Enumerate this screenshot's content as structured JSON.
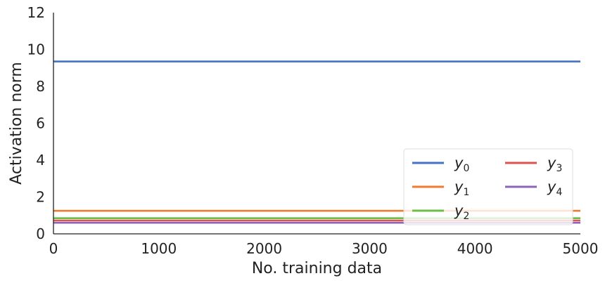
{
  "chart_data": {
    "type": "line",
    "title": "",
    "xlabel": "No. training data",
    "ylabel": "Activation norm",
    "xlim": [
      0,
      5000
    ],
    "ylim": [
      0,
      12
    ],
    "xticks": [
      0,
      1000,
      2000,
      3000,
      4000,
      5000
    ],
    "yticks": [
      0,
      2,
      4,
      6,
      8,
      10,
      12
    ],
    "grid": false,
    "legend_position": "lower-right",
    "legend_columns": 2,
    "series": [
      {
        "name": "y",
        "sub": "0",
        "color": "#4472c4",
        "x": [
          0,
          5000
        ],
        "y": [
          9.35,
          9.35
        ]
      },
      {
        "name": "y",
        "sub": "1",
        "color": "#ed7d31",
        "x": [
          0,
          5000
        ],
        "y": [
          1.25,
          1.25
        ]
      },
      {
        "name": "y",
        "sub": "2",
        "color": "#6abf4b",
        "x": [
          0,
          5000
        ],
        "y": [
          0.85,
          0.85
        ]
      },
      {
        "name": "y",
        "sub": "3",
        "color": "#d9534f",
        "x": [
          0,
          5000
        ],
        "y": [
          0.72,
          0.72
        ]
      },
      {
        "name": "y",
        "sub": "4",
        "color": "#8e63b8",
        "x": [
          0,
          5000
        ],
        "y": [
          0.6,
          0.6
        ]
      }
    ]
  }
}
